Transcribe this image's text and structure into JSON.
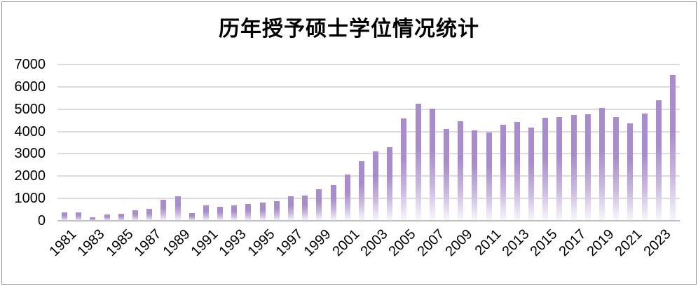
{
  "window": {
    "background": "#ffffff",
    "border_color": "#929292"
  },
  "chart_data": {
    "type": "bar",
    "title": "历年授予硕士学位情况统计",
    "xlabel": "",
    "ylabel": "",
    "categories": [
      "1981",
      "1982",
      "1983",
      "1984",
      "1985",
      "1986",
      "1987",
      "1988",
      "1989",
      "1990",
      "1991",
      "1992",
      "1993",
      "1994",
      "1995",
      "1996",
      "1997",
      "1998",
      "1999",
      "2000",
      "2001",
      "2002",
      "2003",
      "2004",
      "2005",
      "2006",
      "2007",
      "2008",
      "2009",
      "2010",
      "2011",
      "2012",
      "2013",
      "2014",
      "2015",
      "2016",
      "2017",
      "2018",
      "2019",
      "2020",
      "2021",
      "2022",
      "2023",
      "2024"
    ],
    "values": [
      390,
      390,
      160,
      270,
      310,
      460,
      520,
      950,
      1100,
      350,
      700,
      630,
      680,
      770,
      810,
      890,
      1110,
      1130,
      1400,
      1610,
      2060,
      2660,
      3100,
      3310,
      4600,
      5250,
      5010,
      4100,
      4450,
      4060,
      3950,
      4300,
      4420,
      4180,
      4610,
      4640,
      4730,
      4770,
      5050,
      4640,
      4360,
      4800,
      5400,
      6520
    ],
    "ylim": [
      0,
      7000
    ],
    "y_ticks": [
      "0",
      "1000",
      "2000",
      "3000",
      "4000",
      "5000",
      "6000",
      "7000"
    ],
    "x_ticks": [
      "1981",
      "1983",
      "1985",
      "1987",
      "1989",
      "1991",
      "1993",
      "1995",
      "1997",
      "1999",
      "2001",
      "2003",
      "2005",
      "2007",
      "2009",
      "2011",
      "2013",
      "2015",
      "2017",
      "2019",
      "2021",
      "2023"
    ],
    "x_tick_rotation_deg": -45,
    "grid": "horizontal",
    "legend_position": "none",
    "colors": {
      "bar_top": "#a78dcd",
      "bar_mid": "#c9b9e1",
      "bar_bottom": "#f8f6fc",
      "gridline": "#dcdcdc",
      "axis_line": "#c2c2c2",
      "text": "#000000"
    }
  }
}
